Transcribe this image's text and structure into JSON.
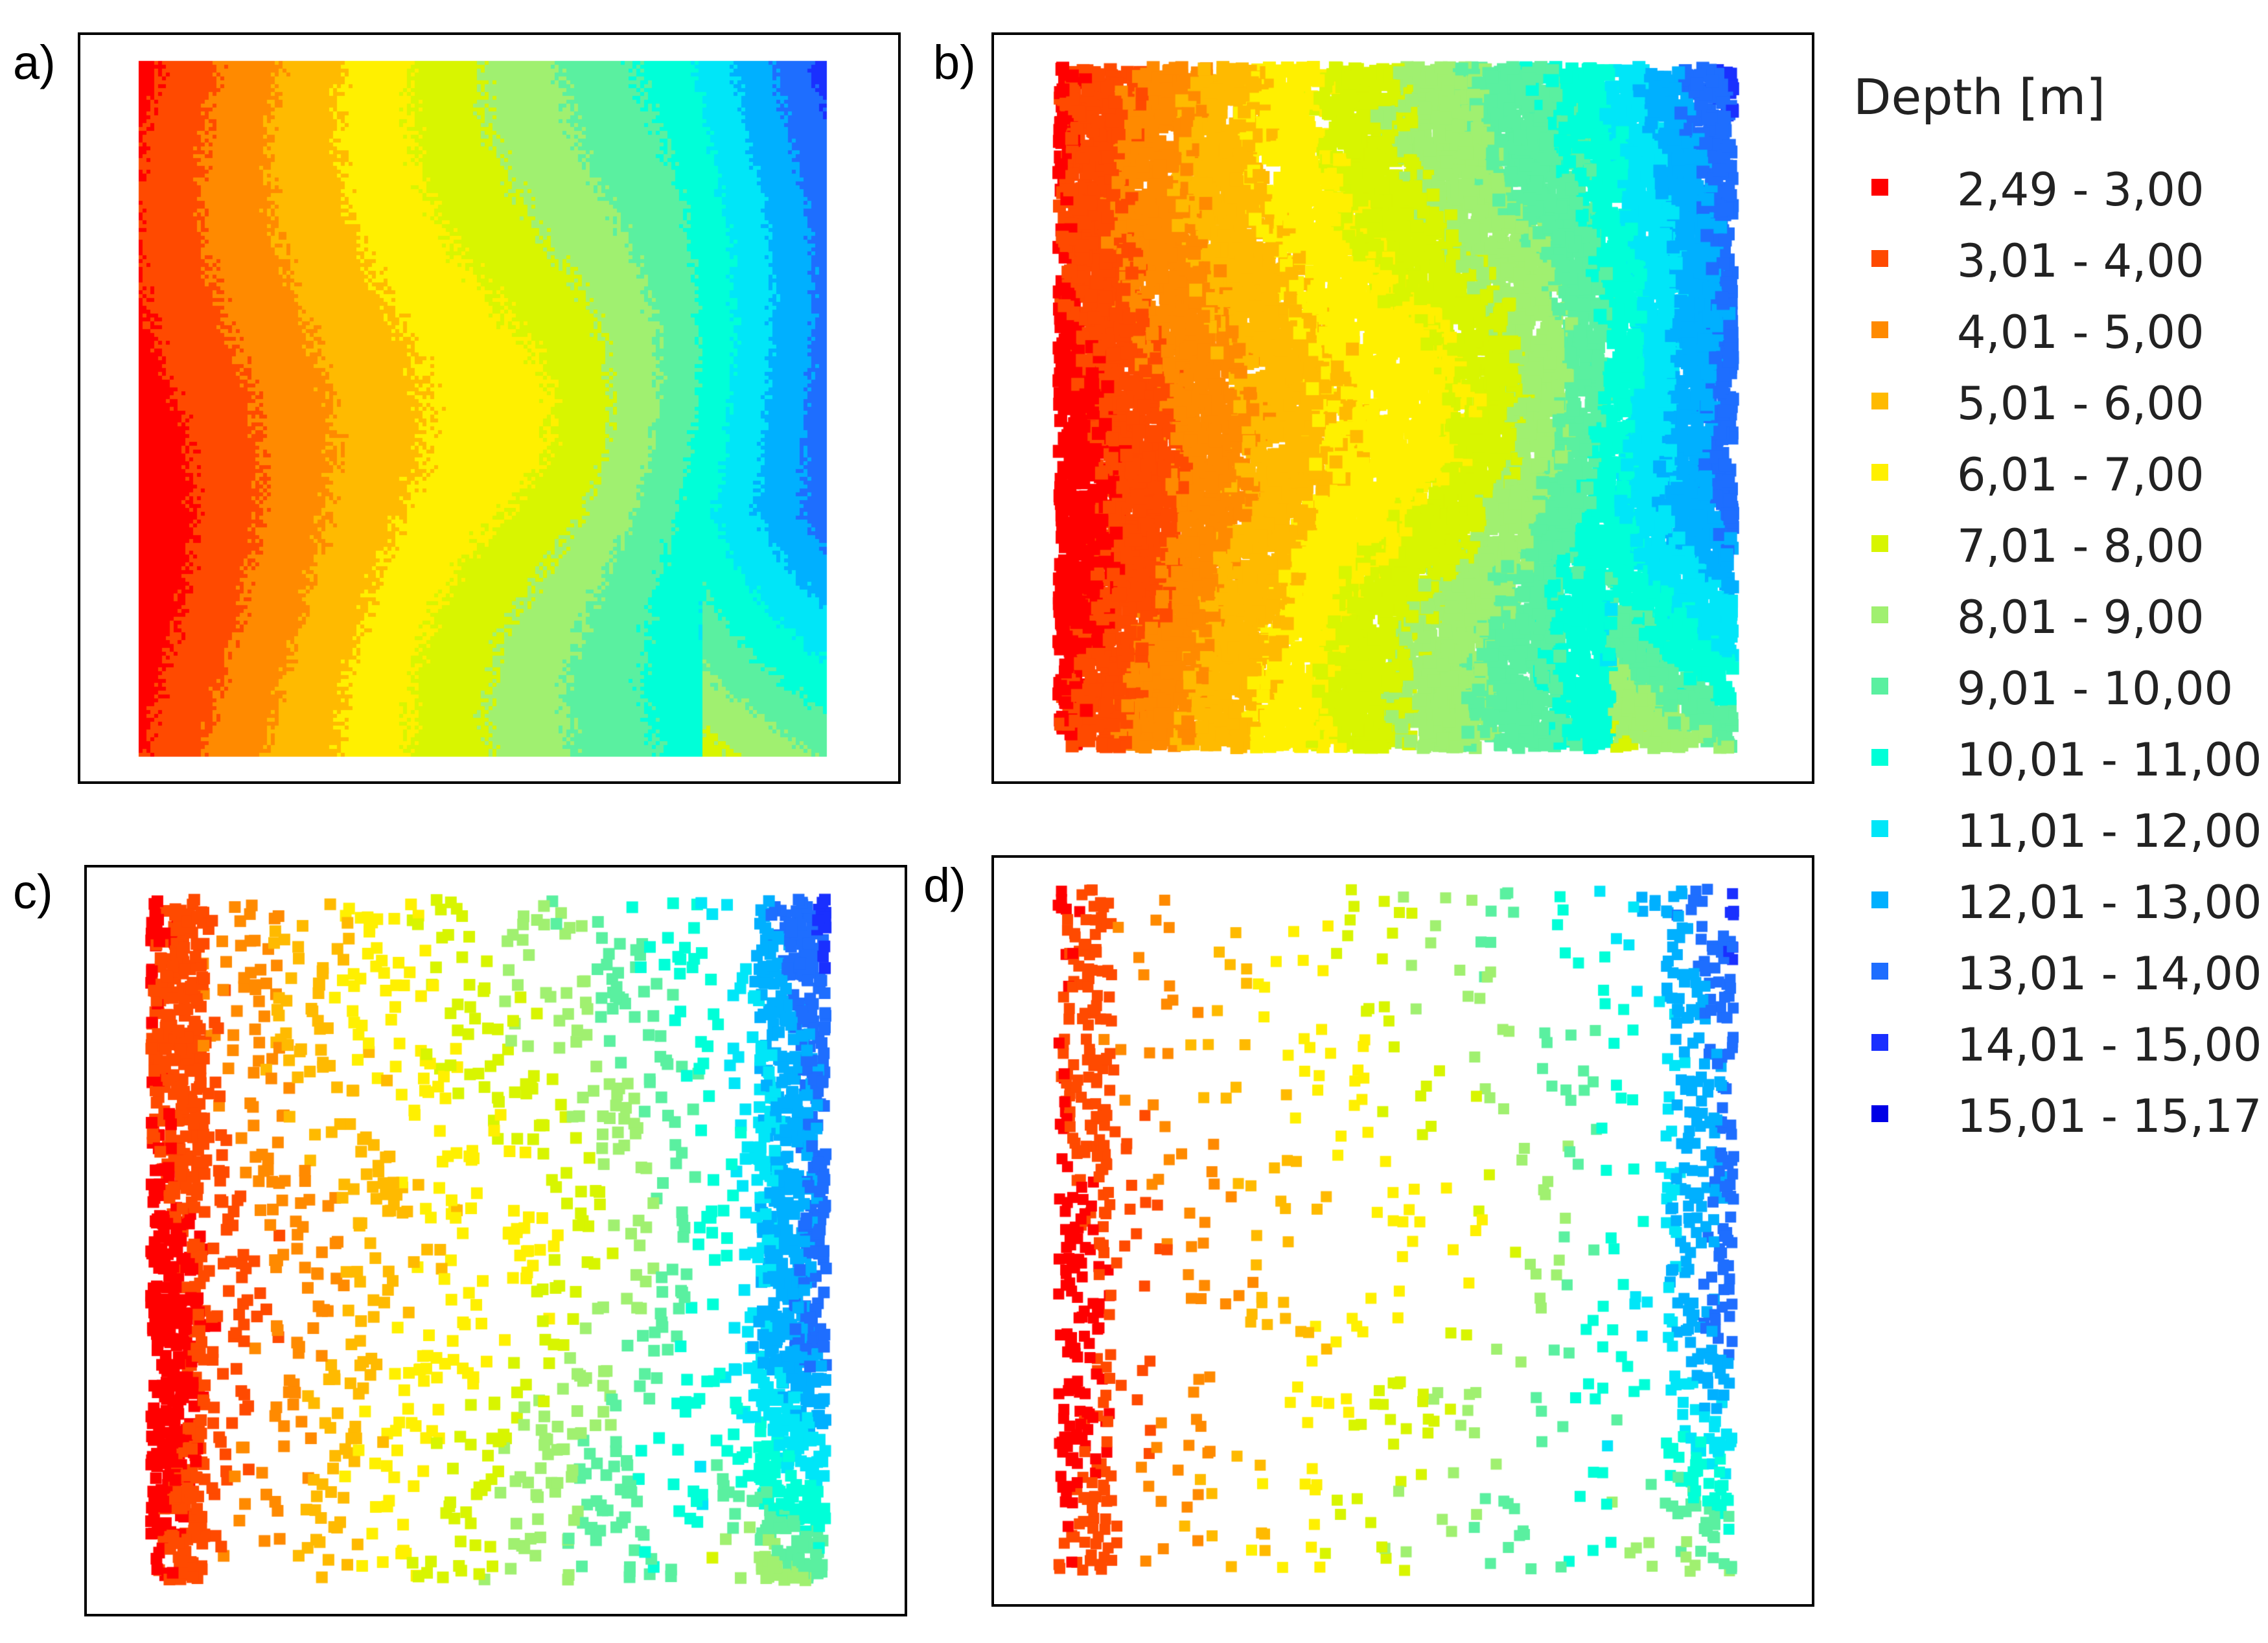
{
  "chart_data": {
    "type": "scatter",
    "description_free": true,
    "legend": {
      "title": "Depth [m]",
      "entries": [
        {
          "label": "2,49 - 3,00",
          "color": "#ff0000"
        },
        {
          "label": "3,01 - 4,00",
          "color": "#ff4a00"
        },
        {
          "label": "4,01 - 5,00",
          "color": "#ff8a00"
        },
        {
          "label": "5,01 - 6,00",
          "color": "#ffba00"
        },
        {
          "label": "6,01 - 7,00",
          "color": "#fff000"
        },
        {
          "label": "7,01 - 8,00",
          "color": "#d8f500"
        },
        {
          "label": "8,01 - 9,00",
          "color": "#a0f070"
        },
        {
          "label": "9,01 - 10,00",
          "color": "#5af0a0"
        },
        {
          "label": "10,01 - 11,00",
          "color": "#00ffd8"
        },
        {
          "label": "11,01 - 12,00",
          "color": "#00e6f8"
        },
        {
          "label": "12,01 - 13,00",
          "color": "#00b0ff"
        },
        {
          "label": "13,01 - 14,00",
          "color": "#1e6eff"
        },
        {
          "label": "14,01 - 15,00",
          "color": "#1a30ff"
        },
        {
          "label": "15,01 - 15,17",
          "color": "#0000e6"
        }
      ]
    },
    "depth_range": [
      2.49,
      15.17
    ],
    "panels": [
      {
        "id": "a",
        "label": "a)",
        "style": "continuous"
      },
      {
        "id": "b",
        "label": "b)",
        "style": "dense"
      },
      {
        "id": "c",
        "label": "c)",
        "style": "medium"
      },
      {
        "id": "d",
        "label": "d)",
        "style": "sparse"
      }
    ]
  }
}
